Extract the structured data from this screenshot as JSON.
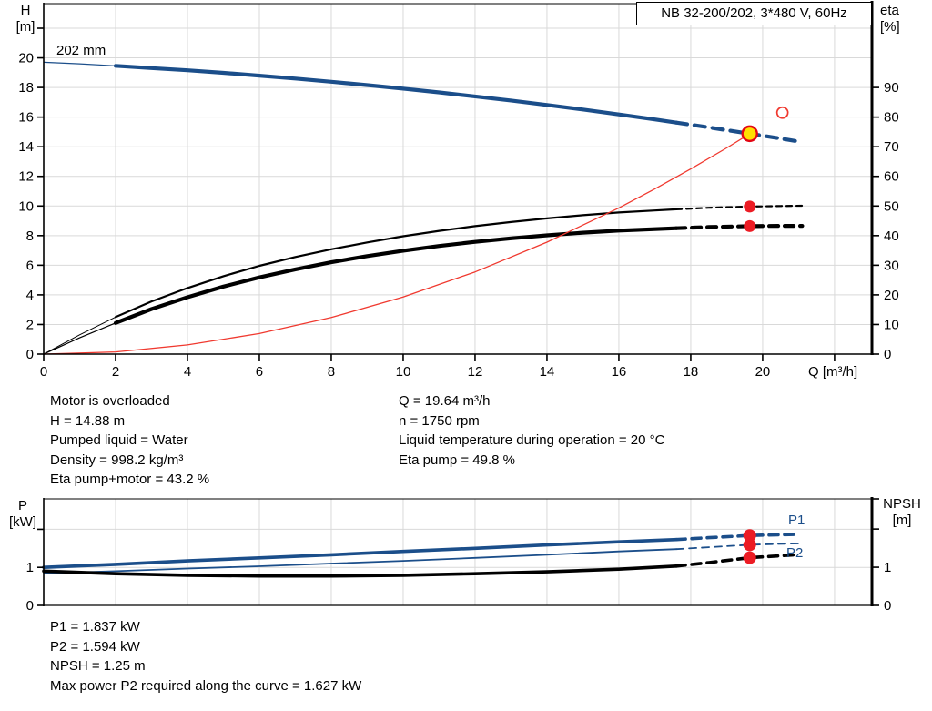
{
  "header": {
    "title": "NB 32-200/202, 3*480 V, 60Hz"
  },
  "top_chart": {
    "impeller_label": "202 mm",
    "h_label": "H",
    "h_unit": "[m]",
    "eta_label": "eta",
    "eta_unit": "[%]",
    "q_label": "Q [m³/h]"
  },
  "bottom_chart": {
    "p_label": "P",
    "p_unit": "[kW]",
    "npsh_label": "NPSH",
    "npsh_unit": "[m]",
    "p1_label": "P1",
    "p2_label": "P2"
  },
  "info": {
    "left": [
      "Motor is overloaded",
      "H = 14.88 m",
      "Pumped liquid = Water",
      "Density = 998.2 kg/m³",
      "Eta pump+motor = 43.2 %"
    ],
    "right": [
      "Q = 19.64 m³/h",
      "n = 1750 rpm",
      "Liquid temperature during operation = 20 °C",
      "Eta pump = 49.8 %"
    ]
  },
  "results": [
    "P1 = 1.837 kW",
    "P2 = 1.594 kW",
    "NPSH = 1.25 m",
    "Max power P2 required along the curve = 1.627 kW"
  ],
  "colors": {
    "curve_blue": "#1b4e8a",
    "curve_black": "#000000",
    "curve_red": "#f0392f",
    "dot_red": "#ec1c24",
    "marker_yellow": "#ffe000",
    "marker_ring_red": "#e30613",
    "grid": "#d9d9d9"
  },
  "operating_point": {
    "Q_m3h": 19.64,
    "H_m": 14.88,
    "eta_pump_pct": 49.8,
    "eta_pump_motor_pct": 43.2,
    "P1_kW": 1.837,
    "P2_kW": 1.594,
    "NPSH_m": 1.25
  },
  "chart_data": [
    {
      "type": "line",
      "title": "NB 32-200/202, 3*480 V, 60Hz — QH / efficiency curves",
      "xlabel": "Q [m³/h]",
      "x_axis": "Q",
      "axes": {
        "Q": {
          "range": [
            0,
            23.04
          ],
          "side": "bottom"
        },
        "H": {
          "range": [
            0,
            23.66
          ],
          "side": "left"
        },
        "eta": {
          "range": [
            0,
            118.3
          ],
          "side": "right"
        }
      },
      "grid": {
        "color": "#d9d9d9",
        "x": [
          2,
          4,
          6,
          8,
          10,
          12,
          14,
          16,
          18,
          20,
          22
        ],
        "y": {
          "axis": "H",
          "values": [
            2,
            4,
            6,
            8,
            10,
            12,
            14,
            16,
            18,
            20,
            22
          ]
        }
      },
      "ticks": [
        {
          "axis": "Q",
          "values": [
            0,
            2,
            4,
            6,
            8,
            10,
            12,
            14,
            16,
            18,
            20,
            22
          ],
          "labels": [
            "0",
            "2",
            "4",
            "6",
            "8",
            "10",
            "12",
            "14",
            "16",
            "18",
            "20",
            ""
          ]
        },
        {
          "axis": "H",
          "values": [
            0,
            2,
            4,
            6,
            8,
            10,
            12,
            14,
            16,
            18,
            20,
            22
          ],
          "labels": [
            "0",
            "2",
            "4",
            "6",
            "8",
            "10",
            "12",
            "14",
            "16",
            "18",
            "20",
            ""
          ]
        },
        {
          "axis": "eta",
          "values": [
            0,
            10,
            20,
            30,
            40,
            50,
            60,
            70,
            80,
            90
          ],
          "labels": [
            "0",
            "10",
            "20",
            "30",
            "40",
            "50",
            "60",
            "70",
            "80",
            "90"
          ]
        }
      ],
      "series": [
        {
          "name": "head-curve-202mm-lead",
          "axis": "H",
          "color": "#1b4e8a",
          "width": 1.2,
          "x": [
            0,
            1,
            2
          ],
          "y": [
            19.7,
            19.6,
            19.46
          ]
        },
        {
          "name": "head-curve-202mm",
          "axis": "H",
          "color": "#1b4e8a",
          "width": 4.2,
          "x": [
            2,
            3,
            4,
            5,
            6,
            7,
            8,
            9,
            10,
            11,
            12,
            13,
            14,
            15,
            16,
            17,
            17.6
          ],
          "y": [
            19.46,
            19.31,
            19.16,
            18.99,
            18.8,
            18.6,
            18.39,
            18.16,
            17.92,
            17.67,
            17.4,
            17.12,
            16.82,
            16.51,
            16.18,
            15.84,
            15.63
          ]
        },
        {
          "name": "head-curve-extrapolated",
          "axis": "H",
          "color": "#1b4e8a",
          "width": 4.2,
          "dash": "12 8",
          "x": [
            17.6,
            18.5,
            19.64,
            20.3,
            21.1
          ],
          "y": [
            15.63,
            15.31,
            14.88,
            14.63,
            14.31
          ]
        },
        {
          "name": "eta-pump-curve-lead",
          "axis": "eta",
          "color": "#000000",
          "width": 1,
          "x": [
            0,
            1,
            2
          ],
          "y": [
            0,
            6.5,
            12.5
          ]
        },
        {
          "name": "eta-pump-curve",
          "axis": "eta",
          "color": "#000000",
          "width": 2.2,
          "x": [
            2,
            3,
            4,
            5,
            6,
            7,
            8,
            9,
            10,
            11,
            12,
            13,
            14,
            15,
            16,
            17,
            17.6
          ],
          "y": [
            12.5,
            17.8,
            22.3,
            26.3,
            29.8,
            32.8,
            35.4,
            37.7,
            39.8,
            41.6,
            43.2,
            44.6,
            45.8,
            46.9,
            47.8,
            48.5,
            48.9
          ]
        },
        {
          "name": "eta-pump-curve-extrapolated",
          "axis": "eta",
          "color": "#000000",
          "width": 2.2,
          "dash": "6 5",
          "x": [
            17.6,
            18.5,
            19.64,
            20.5,
            21.1
          ],
          "y": [
            48.9,
            49.4,
            49.8,
            50.0,
            50.1
          ]
        },
        {
          "name": "eta-pump-motor-curve-lead",
          "axis": "eta",
          "color": "#000000",
          "width": 1.2,
          "x": [
            0,
            1,
            2
          ],
          "y": [
            0,
            5.5,
            10.5
          ]
        },
        {
          "name": "eta-pump-motor-curve",
          "axis": "eta",
          "color": "#000000",
          "width": 4.2,
          "x": [
            2,
            3,
            4,
            5,
            6,
            7,
            8,
            9,
            10,
            11,
            12,
            13,
            14,
            15,
            16,
            17,
            17.6
          ],
          "y": [
            10.5,
            15.2,
            19.2,
            22.8,
            25.9,
            28.6,
            31.0,
            33.1,
            34.9,
            36.5,
            37.9,
            39.1,
            40.1,
            41.0,
            41.7,
            42.2,
            42.5
          ]
        },
        {
          "name": "eta-pump-motor-curve-extrapolated",
          "axis": "eta",
          "color": "#000000",
          "width": 4.2,
          "dash": "10 7",
          "x": [
            17.6,
            18.5,
            19.64,
            20.5,
            21.1
          ],
          "y": [
            42.5,
            42.9,
            43.2,
            43.3,
            43.3
          ]
        },
        {
          "name": "system-curve",
          "axis": "H",
          "color": "#f0392f",
          "width": 1.3,
          "x": [
            0,
            2,
            4,
            6,
            8,
            10,
            12,
            14,
            16,
            17,
            18,
            19,
            19.64
          ],
          "y": [
            0,
            0.15,
            0.62,
            1.39,
            2.47,
            3.86,
            5.55,
            7.56,
            9.87,
            11.15,
            12.5,
            13.92,
            14.88
          ]
        }
      ],
      "markers": [
        {
          "name": "duty-point-marker",
          "axis": "H",
          "x": 19.64,
          "y": 14.88,
          "r": 8,
          "fill": "#ffe000",
          "stroke": "#e30613",
          "sw": 2.4,
          "click": true
        },
        {
          "name": "requested-duty-ring",
          "axis": "H",
          "x": 20.55,
          "y": 16.3,
          "r": 6,
          "fill": "none",
          "stroke": "#f0392f",
          "sw": 1.7,
          "click": false
        },
        {
          "name": "eta-pump-point",
          "axis": "eta",
          "x": 19.64,
          "y": 49.8,
          "r": 6.5,
          "fill": "#ec1c24",
          "click": false
        },
        {
          "name": "eta-pump-motor-point",
          "axis": "eta",
          "x": 19.64,
          "y": 43.2,
          "r": 6.5,
          "fill": "#ec1c24",
          "click": false
        }
      ]
    },
    {
      "type": "line",
      "title": "Power and NPSH curves",
      "xlabel": "Q [m³/h]",
      "x_axis": "Q",
      "axes": {
        "Q": {
          "range": [
            0,
            23.04
          ],
          "side": "bottom"
        },
        "P": {
          "range": [
            0,
            2.8
          ],
          "side": "left"
        },
        "NPSH": {
          "range": [
            0,
            2.79
          ],
          "side": "right"
        }
      },
      "grid": {
        "color": "#d9d9d9",
        "x": [
          2,
          4,
          6,
          8,
          10,
          12,
          14,
          16,
          18,
          20,
          22
        ],
        "y": {
          "axis": "P",
          "values": [
            1,
            2
          ]
        }
      },
      "ticks": [
        {
          "axis": "P",
          "values": [
            0,
            1,
            2
          ],
          "labels": [
            "0",
            "1",
            ""
          ]
        },
        {
          "axis": "NPSH",
          "values": [
            0,
            1,
            2,
            2.79
          ],
          "labels": [
            "0",
            "1",
            "",
            ""
          ]
        }
      ],
      "series": [
        {
          "name": "p1-curve",
          "axis": "P",
          "color": "#1b4e8a",
          "width": 3.6,
          "x": [
            0,
            2,
            4,
            6,
            8,
            10,
            12,
            14,
            16,
            17.6
          ],
          "y": [
            1.0,
            1.08,
            1.17,
            1.25,
            1.33,
            1.42,
            1.5,
            1.59,
            1.67,
            1.73
          ]
        },
        {
          "name": "p1-curve-extrapolated",
          "axis": "P",
          "color": "#1b4e8a",
          "width": 3.6,
          "dash": "10 7",
          "x": [
            17.6,
            18.5,
            19.64,
            21
          ],
          "y": [
            1.73,
            1.78,
            1.837,
            1.87
          ]
        },
        {
          "name": "p2-curve",
          "axis": "P",
          "color": "#1b4e8a",
          "width": 1.8,
          "x": [
            0,
            2,
            4,
            6,
            8,
            10,
            12,
            14,
            16,
            17.6
          ],
          "y": [
            0.84,
            0.9,
            0.97,
            1.03,
            1.1,
            1.17,
            1.25,
            1.33,
            1.42,
            1.48
          ]
        },
        {
          "name": "p2-curve-extrapolated",
          "axis": "P",
          "color": "#1b4e8a",
          "width": 1.8,
          "dash": "8 6",
          "x": [
            17.6,
            18.5,
            19.64,
            21
          ],
          "y": [
            1.48,
            1.53,
            1.594,
            1.63
          ]
        },
        {
          "name": "npsh-curve",
          "axis": "NPSH",
          "color": "#000000",
          "width": 3.6,
          "x": [
            0,
            2,
            4,
            6,
            8,
            10,
            12,
            14,
            16,
            17.6
          ],
          "y": [
            0.9,
            0.83,
            0.79,
            0.77,
            0.77,
            0.79,
            0.83,
            0.88,
            0.95,
            1.03
          ]
        },
        {
          "name": "npsh-curve-extrapolated",
          "axis": "NPSH",
          "color": "#000000",
          "width": 3.6,
          "dash": "10 7",
          "x": [
            17.6,
            18.5,
            19.64,
            21
          ],
          "y": [
            1.03,
            1.12,
            1.25,
            1.33
          ]
        }
      ],
      "markers": [
        {
          "name": "p1-point",
          "axis": "P",
          "x": 19.64,
          "y": 1.837,
          "r": 7,
          "fill": "#ec1c24",
          "click": false
        },
        {
          "name": "p2-point",
          "axis": "P",
          "x": 19.64,
          "y": 1.594,
          "r": 7,
          "fill": "#ec1c24",
          "click": false
        },
        {
          "name": "npsh-point",
          "axis": "NPSH",
          "x": 19.64,
          "y": 1.25,
          "r": 7,
          "fill": "#ec1c24",
          "click": false
        }
      ]
    }
  ]
}
